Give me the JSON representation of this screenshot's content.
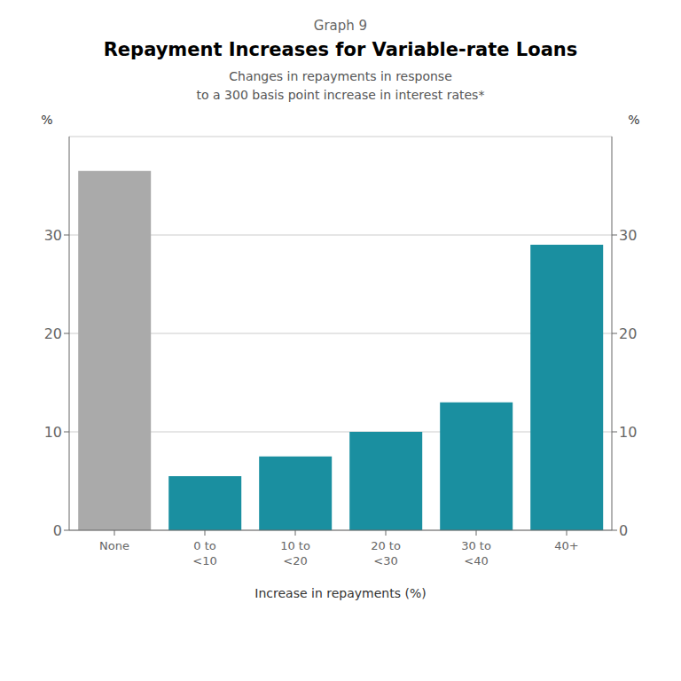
{
  "chart_data": {
    "type": "bar",
    "annotations": [
      "Graph 9"
    ],
    "title": "Repayment Increases for Variable-rate Loans",
    "subtitle": "Changes in repayments in response\nto a 300 basis point increase in interest rates*",
    "xlabel": "Increase in repayments (%)",
    "ylabel": "%",
    "y2label": "%",
    "categories": [
      "None",
      "0 to\n<10",
      "10 to\n<20",
      "20 to\n<30",
      "30 to\n<40",
      "40+"
    ],
    "values": [
      36.5,
      5.5,
      7.5,
      10.0,
      13.0,
      29.0
    ],
    "colors": [
      "#aaaaaa",
      "#1a8fa0",
      "#1a8fa0",
      "#1a8fa0",
      "#1a8fa0",
      "#1a8fa0"
    ],
    "ylim": [
      0,
      40
    ],
    "yticks": [
      0,
      10,
      20,
      30
    ],
    "y2lim": [
      0,
      40
    ],
    "y2ticks": [
      0,
      10,
      20,
      30
    ],
    "grid": true
  }
}
